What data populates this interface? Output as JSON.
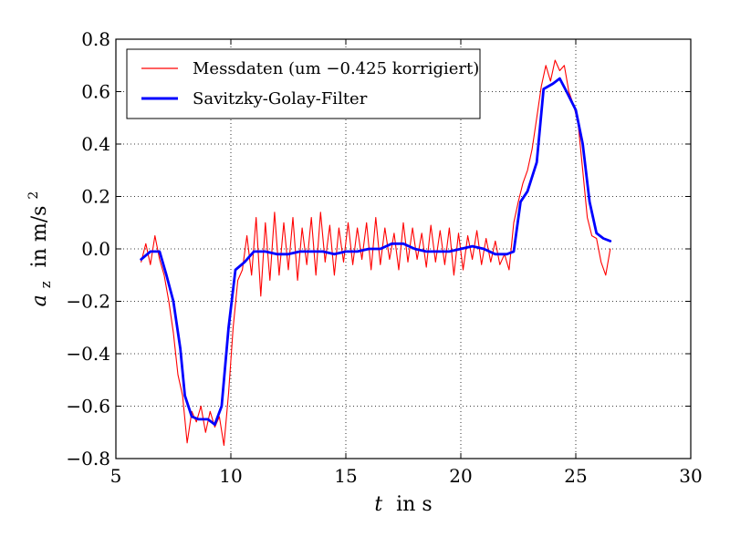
{
  "chart_data": {
    "type": "line",
    "xlabel_var": "t",
    "xlabel_unit": "in s",
    "ylabel_var": "a",
    "ylabel_sub": "z",
    "ylabel_unit": "in m/s",
    "ylabel_sup": "2",
    "xlim": [
      5,
      30
    ],
    "ylim": [
      -0.8,
      0.8
    ],
    "xticks": [
      5,
      10,
      15,
      20,
      25,
      30
    ],
    "yticks": [
      -0.8,
      -0.6,
      -0.4,
      -0.2,
      0.0,
      0.2,
      0.4,
      0.6,
      0.8
    ],
    "xtick_labels": [
      "5",
      "10",
      "15",
      "20",
      "25",
      "30"
    ],
    "ytick_labels": [
      "−0.8",
      "−0.6",
      "−0.4",
      "−0.2",
      "0.0",
      "0.2",
      "0.4",
      "0.6",
      "0.8"
    ],
    "grid": true,
    "legend_position": "top-left",
    "series": [
      {
        "name": "Messdaten (um −0.425 korrigiert)",
        "color": "#ff0000",
        "x": [
          6.1,
          6.3,
          6.5,
          6.7,
          6.9,
          7.1,
          7.3,
          7.5,
          7.7,
          7.9,
          8.1,
          8.3,
          8.5,
          8.7,
          8.9,
          9.1,
          9.3,
          9.5,
          9.7,
          9.9,
          10.1,
          10.3,
          10.5,
          10.7,
          10.9,
          11.1,
          11.3,
          11.5,
          11.7,
          11.9,
          12.1,
          12.3,
          12.5,
          12.7,
          12.9,
          13.1,
          13.3,
          13.5,
          13.7,
          13.9,
          14.1,
          14.3,
          14.5,
          14.7,
          14.9,
          15.1,
          15.3,
          15.5,
          15.7,
          15.9,
          16.1,
          16.3,
          16.5,
          16.7,
          16.9,
          17.1,
          17.3,
          17.5,
          17.7,
          17.9,
          18.1,
          18.3,
          18.5,
          18.7,
          18.9,
          19.1,
          19.3,
          19.5,
          19.7,
          19.9,
          20.1,
          20.3,
          20.5,
          20.7,
          20.9,
          21.1,
          21.3,
          21.5,
          21.7,
          21.9,
          22.1,
          22.3,
          22.5,
          22.7,
          22.9,
          23.1,
          23.3,
          23.5,
          23.7,
          23.9,
          24.1,
          24.3,
          24.5,
          24.7,
          24.9,
          25.1,
          25.3,
          25.5,
          25.7,
          25.9,
          26.1,
          26.3,
          26.5
        ],
        "y": [
          -0.05,
          0.02,
          -0.06,
          0.05,
          -0.04,
          -0.1,
          -0.2,
          -0.32,
          -0.48,
          -0.56,
          -0.74,
          -0.62,
          -0.66,
          -0.6,
          -0.7,
          -0.62,
          -0.68,
          -0.64,
          -0.75,
          -0.55,
          -0.3,
          -0.12,
          -0.08,
          0.05,
          -0.1,
          0.12,
          -0.18,
          0.1,
          -0.12,
          0.14,
          -0.1,
          0.1,
          -0.08,
          0.12,
          -0.12,
          0.08,
          -0.06,
          0.12,
          -0.1,
          0.14,
          -0.05,
          0.09,
          -0.1,
          0.08,
          -0.05,
          0.1,
          -0.06,
          0.08,
          -0.04,
          0.1,
          -0.08,
          0.12,
          -0.06,
          0.08,
          -0.04,
          0.06,
          -0.08,
          0.1,
          -0.05,
          0.08,
          -0.04,
          0.06,
          -0.07,
          0.09,
          -0.05,
          0.07,
          -0.06,
          0.08,
          -0.1,
          0.06,
          -0.08,
          0.05,
          -0.04,
          0.07,
          -0.06,
          0.04,
          -0.05,
          0.03,
          -0.06,
          -0.02,
          -0.08,
          0.1,
          0.18,
          0.25,
          0.3,
          0.38,
          0.5,
          0.62,
          0.7,
          0.64,
          0.72,
          0.68,
          0.7,
          0.6,
          0.55,
          0.48,
          0.3,
          0.12,
          0.05,
          0.04,
          -0.05,
          -0.1,
          0.0
        ]
      },
      {
        "name": "Savitzky-Golay-Filter",
        "color": "#0000ff",
        "x": [
          6.1,
          6.5,
          6.9,
          7.2,
          7.5,
          7.8,
          8.0,
          8.3,
          8.6,
          9.0,
          9.3,
          9.6,
          9.9,
          10.2,
          10.6,
          11.0,
          11.5,
          12.0,
          12.5,
          13.0,
          13.5,
          14.0,
          14.5,
          15.0,
          15.5,
          16.0,
          16.5,
          17.0,
          17.5,
          18.0,
          18.5,
          19.0,
          19.5,
          20.0,
          20.5,
          21.0,
          21.5,
          22.0,
          22.3,
          22.6,
          22.9,
          23.3,
          23.6,
          24.0,
          24.3,
          24.6,
          25.0,
          25.3,
          25.6,
          25.9,
          26.2,
          26.5
        ],
        "y": [
          -0.04,
          -0.01,
          -0.01,
          -0.1,
          -0.2,
          -0.38,
          -0.56,
          -0.64,
          -0.65,
          -0.65,
          -0.67,
          -0.6,
          -0.3,
          -0.08,
          -0.05,
          -0.01,
          -0.01,
          -0.02,
          -0.02,
          -0.01,
          -0.01,
          -0.01,
          -0.02,
          -0.01,
          -0.01,
          0.0,
          0.0,
          0.02,
          0.02,
          0.0,
          -0.01,
          -0.01,
          -0.01,
          0.0,
          0.01,
          0.0,
          -0.02,
          -0.02,
          -0.01,
          0.18,
          0.22,
          0.33,
          0.61,
          0.63,
          0.65,
          0.6,
          0.53,
          0.4,
          0.18,
          0.06,
          0.04,
          0.03
        ]
      }
    ]
  }
}
